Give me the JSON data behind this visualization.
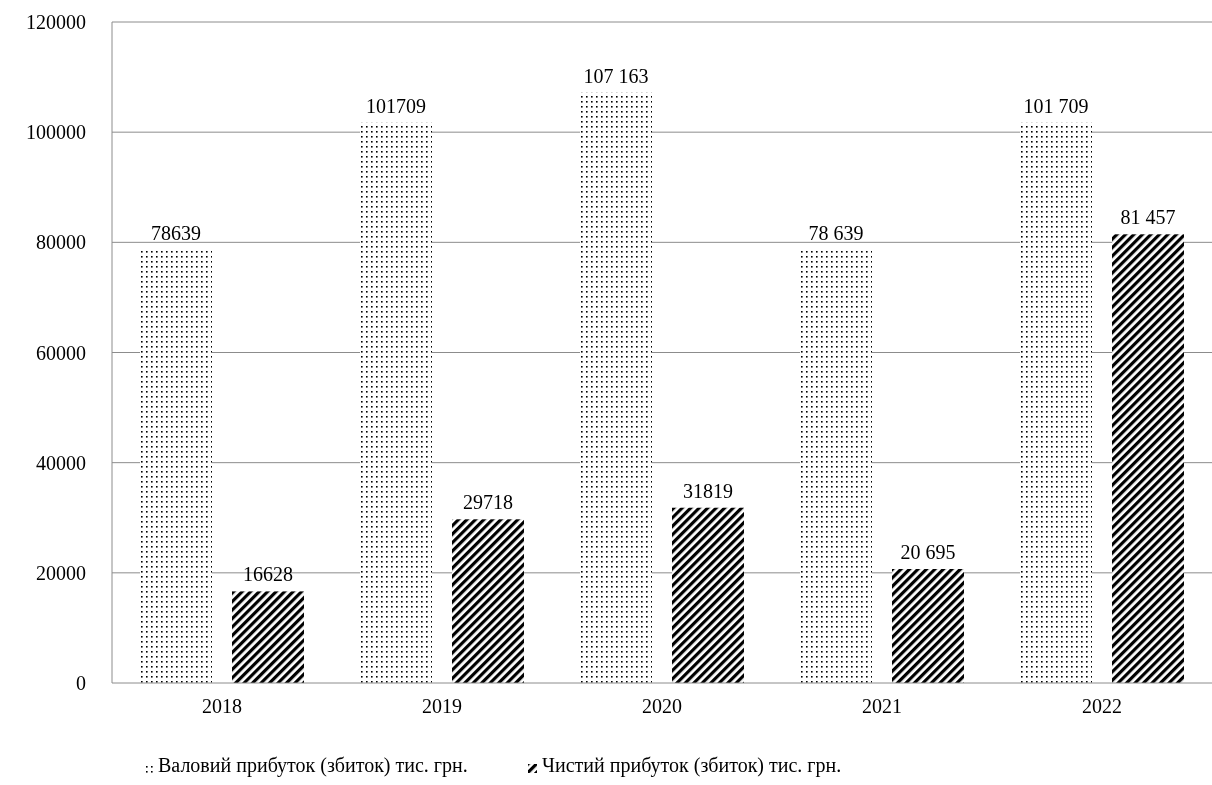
{
  "chart_data": {
    "type": "bar",
    "categories": [
      "2018",
      "2019",
      "2020",
      "2021",
      "2022"
    ],
    "series": [
      {
        "name": "Валовий прибуток (збиток) тис. грн.",
        "color": "#000000",
        "values": [
          78639,
          101709,
          107163,
          78639,
          101709
        ],
        "value_labels": [
          "78639",
          "101709",
          "107 163",
          "78 639",
          "101 709"
        ]
      },
      {
        "name": "Чистий прибуток (збиток) тис. грн.",
        "color": "#000000",
        "values": [
          16628,
          29718,
          31819,
          20695,
          81457
        ],
        "value_labels": [
          "16628",
          "29718",
          "31819",
          "20 695",
          "81 457"
        ]
      }
    ],
    "ylim": [
      0,
      120000
    ],
    "yticks": [
      0,
      20000,
      40000,
      60000,
      80000,
      100000,
      120000
    ],
    "grid": "y",
    "legend": "bottom"
  }
}
